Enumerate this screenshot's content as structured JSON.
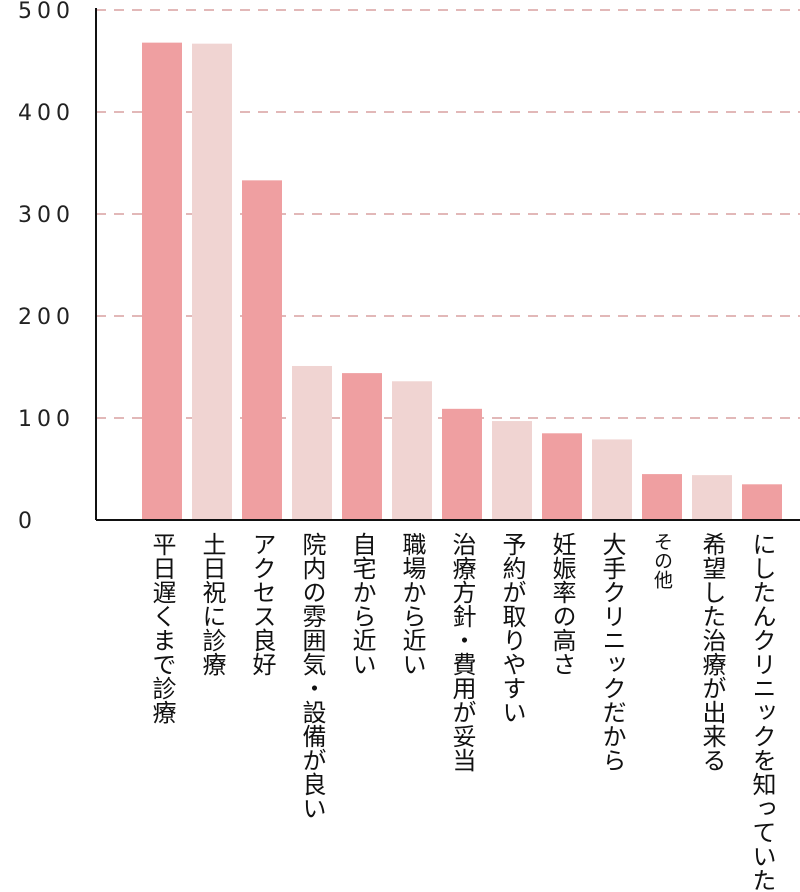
{
  "chart_data": {
    "type": "bar",
    "categories": [
      "平日遅くまで診療",
      "土日祝に診療",
      "アクセス良好",
      "院内の雰囲気・設備が良い",
      "自宅から近い",
      "職場から近い",
      "治療方針・費用が妥当",
      "予約が取りやすい",
      "妊娠率の高さ",
      "大手クリニックだから",
      "その他",
      "希望した治療が出来る",
      "にしたんクリニックを知っていた"
    ],
    "values": [
      468,
      467,
      333,
      151,
      144,
      136,
      109,
      97,
      85,
      79,
      45,
      44,
      35
    ],
    "ylim": [
      0,
      500
    ],
    "yticks": [
      "0",
      "100",
      "200",
      "300",
      "400",
      "500"
    ],
    "grid": true,
    "colors": [
      "#ef9fa1",
      "#f0d4d2"
    ],
    "gridline_color": "#d9a0a0"
  }
}
